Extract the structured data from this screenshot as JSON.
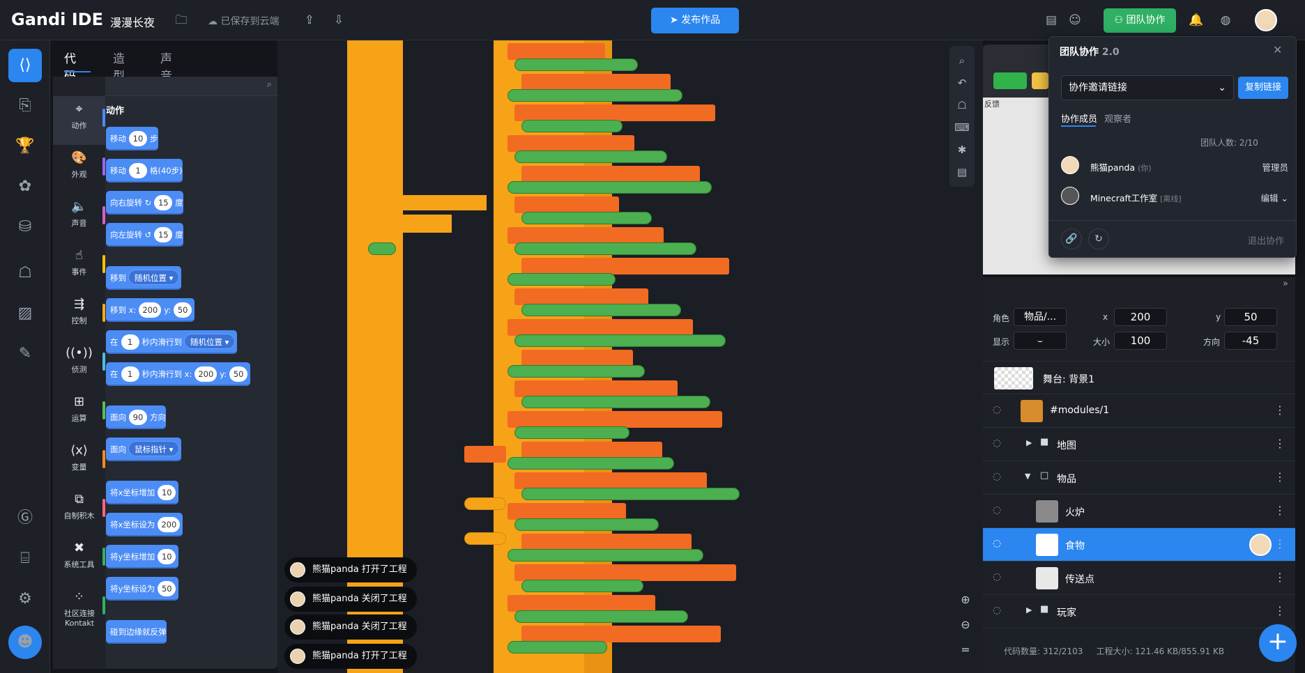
{
  "topbar": {
    "logo": "Gandi IDE",
    "project_name": "漫漫长夜",
    "saved_status": "已保存到云端",
    "publish_label": "发布作品",
    "team_label": "团队协作"
  },
  "code_tabs": [
    "代码",
    "造型",
    "声音"
  ],
  "categories": [
    {
      "label": "动作",
      "color": "#4c8cf5"
    },
    {
      "label": "外观",
      "color": "#9966ff"
    },
    {
      "label": "声音",
      "color": "#cf63cf"
    },
    {
      "label": "事件",
      "color": "#ffbf00"
    },
    {
      "label": "控制",
      "color": "#ffab19"
    },
    {
      "label": "侦测",
      "color": "#4cbfe6"
    },
    {
      "label": "运算",
      "color": "#59c059"
    },
    {
      "label": "变量",
      "color": "#ff8c1a"
    },
    {
      "label": "自制积木",
      "color": "#ff6680"
    },
    {
      "label": "系统工具",
      "color": "#2fb064"
    },
    {
      "label": "社区连接 Kontakt",
      "color": "#2fb064"
    }
  ],
  "palette_title": "动作",
  "blocks": {
    "move": {
      "pre": "移动",
      "val": "10",
      "post": "步"
    },
    "move_grid": {
      "pre": "移动",
      "val": "1",
      "post": "格(40步)"
    },
    "turn_right": {
      "pre": "向右旋转",
      "val": "15",
      "post": "度"
    },
    "turn_left": {
      "pre": "向左旋转",
      "val": "15",
      "post": "度"
    },
    "goto": {
      "pre": "移到",
      "dropdown": "随机位置"
    },
    "goto_xy": {
      "pre": "移到 x:",
      "x": "200",
      "ymid": "y:",
      "y": "50"
    },
    "glide": {
      "pre": "在",
      "val": "1",
      "mid": "秒内滑行到",
      "dropdown": "随机位置"
    },
    "glide_xy": {
      "pre": "在",
      "val": "1",
      "mid": "秒内滑行到 x:",
      "x": "200",
      "ymid": "y:",
      "y": "50"
    },
    "point_dir": {
      "pre": "面向",
      "val": "90",
      "post": "方向"
    },
    "point_towards": {
      "pre": "面向",
      "dropdown": "鼠标指针"
    },
    "change_x": {
      "pre": "将x坐标增加",
      "val": "10"
    },
    "set_x": {
      "pre": "将x坐标设为",
      "val": "200"
    },
    "change_y": {
      "pre": "将y坐标增加",
      "val": "10"
    },
    "set_y": {
      "pre": "将y坐标设为",
      "val": "50"
    },
    "bounce": {
      "pre": "碰到边缘就反弹"
    }
  },
  "notifications": [
    {
      "text": "熊猫panda 打开了工程"
    },
    {
      "text": "熊猫panda 关闭了工程"
    },
    {
      "text": "熊猫panda 关闭了工程"
    },
    {
      "text": "熊猫panda 打开了工程"
    }
  ],
  "stage": {
    "feedback": "反馈"
  },
  "sprite_info": {
    "role_label": "角色",
    "role_value": "物品/...",
    "x_label": "x",
    "x_value": "200",
    "y_label": "y",
    "y_value": "50",
    "show_label": "显示",
    "size_label": "大小",
    "size_value": "100",
    "dir_label": "方向",
    "dir_value": "-45"
  },
  "stage_row": "舞台: 背景1",
  "sprite_rows": [
    {
      "name": "#modules/1"
    },
    {
      "name": "地图"
    },
    {
      "name": "物品"
    },
    {
      "name": "火炉"
    },
    {
      "name": "食物"
    },
    {
      "name": "传送点"
    },
    {
      "name": "玩家"
    }
  ],
  "footer": {
    "code_count": "代码数量: 312/2103",
    "size": "工程大小: 121.46 KB/855.91 KB"
  },
  "collab": {
    "title": "团队协作",
    "version": "2.0",
    "invite_label": "协作邀请链接",
    "copy_label": "复制链接",
    "tab_members": "协作成员",
    "tab_viewers": "观察者",
    "member_count": "团队人数: 2/10",
    "members": [
      {
        "name": "熊猫panda",
        "status": "(你)",
        "role": "管理员"
      },
      {
        "name": "Minecraft工作室",
        "status": "[离线]",
        "role": "编辑"
      }
    ],
    "leave_label": "退出协作"
  },
  "colors": {
    "accent": "#2b86f0",
    "team": "#2fb064",
    "motion": "#4c8cf5"
  }
}
